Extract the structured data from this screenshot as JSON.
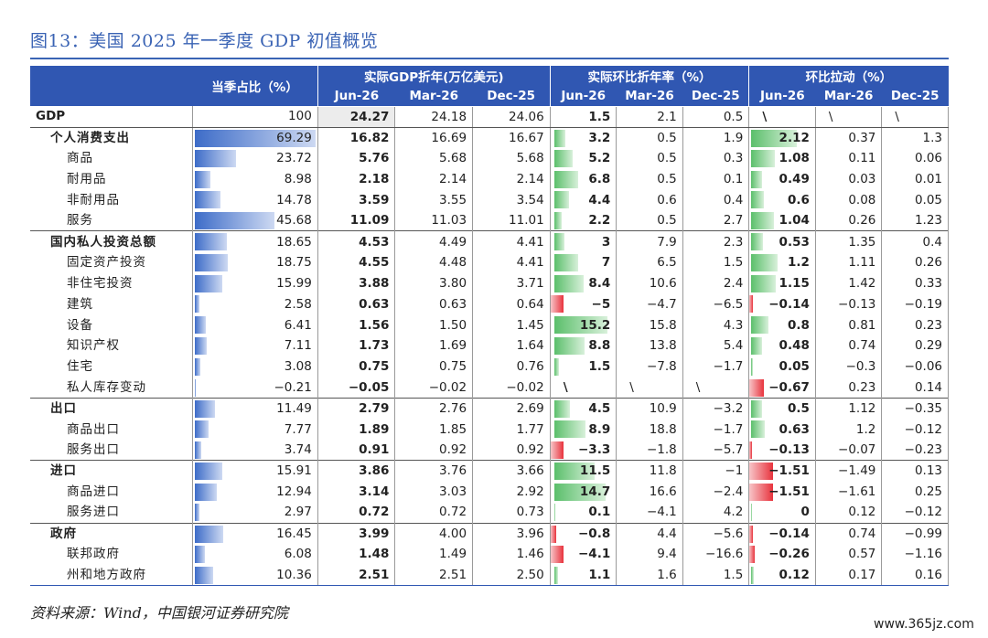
{
  "title": "图13：美国 2025 年一季度 GDP 初值概览",
  "source": "资料来源：Wind，中国银河证券研究院",
  "watermark": "www.365jz.com",
  "colors": {
    "header_bg": "#3057b2",
    "title": "#3a63b4",
    "share_bar": "#3d6cc8",
    "positive_bar": "#5bbf6b",
    "negative_bar": "#e8333d"
  },
  "chart_data": {
    "type": "table",
    "header_groups": [
      "当季占比（%）",
      "实际GDP折年(万亿美元)",
      "实际环比折年率（%）",
      "环比拉动（%）"
    ],
    "periods": [
      "Jun-26",
      "Mar-26",
      "Dec-25"
    ],
    "rows": [
      {
        "name": "GDP",
        "level": "gdp",
        "share": "100",
        "real": [
          "24.27",
          "24.18",
          "24.06"
        ],
        "qoq": [
          "1.5",
          "2.1",
          "0.5"
        ],
        "contrib": [
          "\\",
          "\\",
          "\\"
        ]
      },
      {
        "name": "个人消费支出",
        "level": 0,
        "share": "69.29",
        "real": [
          "16.82",
          "16.69",
          "16.67"
        ],
        "qoq": [
          "3.2",
          "0.5",
          "1.9"
        ],
        "contrib": [
          "2.12",
          "0.37",
          "1.3"
        ]
      },
      {
        "name": "商品",
        "level": 1,
        "share": "23.72",
        "real": [
          "5.76",
          "5.68",
          "5.68"
        ],
        "qoq": [
          "5.2",
          "0.5",
          "0.3"
        ],
        "contrib": [
          "1.08",
          "0.11",
          "0.06"
        ]
      },
      {
        "name": "耐用品",
        "level": 1,
        "share": "8.98",
        "real": [
          "2.18",
          "2.14",
          "2.14"
        ],
        "qoq": [
          "6.8",
          "0.5",
          "0.1"
        ],
        "contrib": [
          "0.49",
          "0.03",
          "0.01"
        ]
      },
      {
        "name": "非耐用品",
        "level": 1,
        "share": "14.78",
        "real": [
          "3.59",
          "3.55",
          "3.54"
        ],
        "qoq": [
          "4.4",
          "0.6",
          "0.4"
        ],
        "contrib": [
          "0.6",
          "0.08",
          "0.05"
        ]
      },
      {
        "name": "服务",
        "level": 1,
        "share": "45.68",
        "real": [
          "11.09",
          "11.03",
          "11.01"
        ],
        "qoq": [
          "2.2",
          "0.5",
          "2.7"
        ],
        "contrib": [
          "1.04",
          "0.26",
          "1.23"
        ]
      },
      {
        "name": "国内私人投资总额",
        "level": 0,
        "share": "18.65",
        "real": [
          "4.53",
          "4.49",
          "4.41"
        ],
        "qoq": [
          "3",
          "7.9",
          "2.3"
        ],
        "contrib": [
          "0.53",
          "1.35",
          "0.4"
        ]
      },
      {
        "name": "固定资产投资",
        "level": 1,
        "share": "18.75",
        "real": [
          "4.55",
          "4.48",
          "4.41"
        ],
        "qoq": [
          "7",
          "6.5",
          "1.5"
        ],
        "contrib": [
          "1.2",
          "1.11",
          "0.26"
        ]
      },
      {
        "name": "非住宅投资",
        "level": 1,
        "share": "15.99",
        "real": [
          "3.88",
          "3.80",
          "3.71"
        ],
        "qoq": [
          "8.4",
          "10.6",
          "2.4"
        ],
        "contrib": [
          "1.15",
          "1.42",
          "0.33"
        ]
      },
      {
        "name": "建筑",
        "level": 1,
        "share": "2.58",
        "real": [
          "0.63",
          "0.63",
          "0.64"
        ],
        "qoq": [
          "−5",
          "−4.7",
          "−6.5"
        ],
        "contrib": [
          "−0.14",
          "−0.13",
          "−0.19"
        ]
      },
      {
        "name": "设备",
        "level": 1,
        "share": "6.41",
        "real": [
          "1.56",
          "1.50",
          "1.45"
        ],
        "qoq": [
          "15.2",
          "15.8",
          "4.3"
        ],
        "contrib": [
          "0.8",
          "0.81",
          "0.23"
        ]
      },
      {
        "name": "知识产权",
        "level": 1,
        "share": "7.11",
        "real": [
          "1.73",
          "1.69",
          "1.64"
        ],
        "qoq": [
          "8.8",
          "13.8",
          "5.4"
        ],
        "contrib": [
          "0.48",
          "0.74",
          "0.29"
        ]
      },
      {
        "name": "住宅",
        "level": 1,
        "share": "3.08",
        "real": [
          "0.75",
          "0.75",
          "0.76"
        ],
        "qoq": [
          "1.5",
          "−7.8",
          "−1.7"
        ],
        "contrib": [
          "0.05",
          "−0.3",
          "−0.06"
        ]
      },
      {
        "name": "私人库存变动",
        "level": 1,
        "share": "−0.21",
        "real": [
          "−0.05",
          "−0.02",
          "−0.02"
        ],
        "qoq": [
          "\\",
          "\\",
          "\\"
        ],
        "contrib": [
          "−0.67",
          "0.23",
          "0.14"
        ]
      },
      {
        "name": "出口",
        "level": 0,
        "share": "11.49",
        "real": [
          "2.79",
          "2.76",
          "2.69"
        ],
        "qoq": [
          "4.5",
          "10.9",
          "−3.2"
        ],
        "contrib": [
          "0.5",
          "1.12",
          "−0.35"
        ]
      },
      {
        "name": "商品出口",
        "level": 1,
        "share": "7.77",
        "real": [
          "1.89",
          "1.85",
          "1.77"
        ],
        "qoq": [
          "8.9",
          "18.8",
          "−1.7"
        ],
        "contrib": [
          "0.63",
          "1.2",
          "−0.12"
        ]
      },
      {
        "name": "服务出口",
        "level": 1,
        "share": "3.74",
        "real": [
          "0.91",
          "0.92",
          "0.92"
        ],
        "qoq": [
          "−3.3",
          "−1.8",
          "−5.7"
        ],
        "contrib": [
          "−0.13",
          "−0.07",
          "−0.23"
        ]
      },
      {
        "name": "进口",
        "level": 0,
        "share": "15.91",
        "real": [
          "3.86",
          "3.76",
          "3.66"
        ],
        "qoq": [
          "11.5",
          "11.8",
          "−1"
        ],
        "contrib": [
          "−1.51",
          "−1.49",
          "0.13"
        ]
      },
      {
        "name": "商品进口",
        "level": 1,
        "share": "12.94",
        "real": [
          "3.14",
          "3.03",
          "2.92"
        ],
        "qoq": [
          "14.7",
          "16.6",
          "−2.4"
        ],
        "contrib": [
          "−1.51",
          "−1.61",
          "0.25"
        ]
      },
      {
        "name": "服务进口",
        "level": 1,
        "share": "2.97",
        "real": [
          "0.72",
          "0.72",
          "0.73"
        ],
        "qoq": [
          "0.1",
          "−4.1",
          "4.2"
        ],
        "contrib": [
          "0",
          "0.12",
          "−0.12"
        ]
      },
      {
        "name": "政府",
        "level": 0,
        "share": "16.45",
        "real": [
          "3.99",
          "4.00",
          "3.96"
        ],
        "qoq": [
          "−0.8",
          "4.4",
          "−5.6"
        ],
        "contrib": [
          "−0.14",
          "0.74",
          "−0.99"
        ]
      },
      {
        "name": "联邦政府",
        "level": 1,
        "share": "6.08",
        "real": [
          "1.48",
          "1.49",
          "1.46"
        ],
        "qoq": [
          "−4.1",
          "9.4",
          "−16.6"
        ],
        "contrib": [
          "−0.26",
          "0.57",
          "−1.16"
        ]
      },
      {
        "name": "州和地方政府",
        "level": 1,
        "share": "10.36",
        "real": [
          "2.51",
          "2.51",
          "2.50"
        ],
        "qoq": [
          "1.1",
          "1.6",
          "1.5"
        ],
        "contrib": [
          "0.12",
          "0.17",
          "0.16"
        ]
      }
    ]
  }
}
